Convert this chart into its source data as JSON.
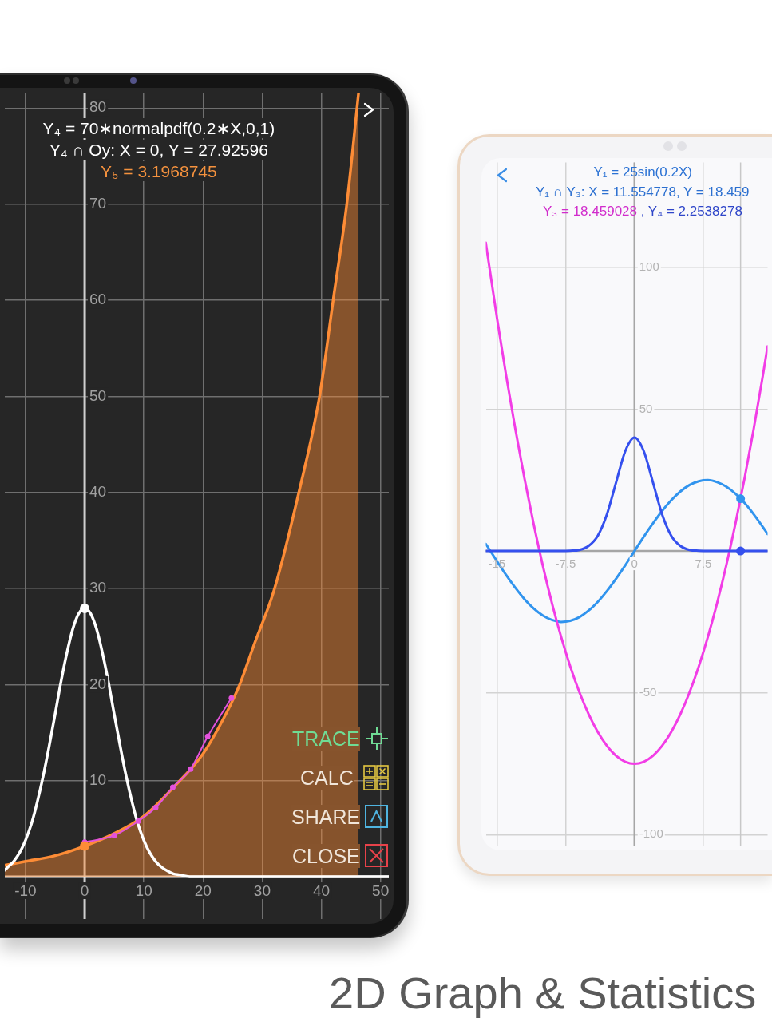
{
  "chart_data": [
    {
      "type": "line",
      "xlim": [
        -13.5,
        51.4
      ],
      "ylim": [
        -4.4,
        81.6
      ],
      "xticks": [
        -10,
        0,
        10,
        20,
        30,
        40,
        50
      ],
      "yticks": [
        10,
        20,
        30,
        40,
        50,
        60,
        70,
        80
      ],
      "grid": true,
      "annotations": [
        "Y₄ = 70∗normalpdf(0.2∗X,0,1)",
        "Y₄ ∩ Oy: X = 0, Y = 27.92596",
        "Y₅ = 3.1968745",
        "TRACE",
        "CALC",
        "SHARE",
        "CLOSE",
        "2D Graph & Statistics"
      ],
      "series": [
        {
          "type": "area",
          "color": "#fd8c36",
          "x": [
            -13.5,
            -10,
            -5,
            0,
            5,
            10,
            15,
            20,
            24,
            26.2,
            28.6,
            32.1,
            36.2,
            39.7,
            42,
            44.3,
            46.3
          ],
          "values": [
            1.2,
            1.6,
            2.2,
            3.2,
            4.5,
            6.3,
            9.3,
            12.8,
            17.1,
            20,
            24.1,
            30,
            40,
            50,
            60,
            70,
            81.6
          ]
        },
        {
          "type": "line",
          "color": "#ffffff",
          "x": [
            -13.5,
            -13,
            -12,
            -11,
            -10,
            -9,
            -8,
            -7,
            -6,
            -5,
            -4,
            -3,
            -2,
            -1,
            0,
            1,
            2,
            3,
            4,
            5,
            6,
            7,
            8,
            9,
            10,
            11,
            12,
            13,
            14,
            15,
            16,
            18,
            20,
            30,
            40,
            51.4
          ],
          "values": [
            0.7,
            1.0,
            1.6,
            2.5,
            3.8,
            5.5,
            7.8,
            10.5,
            13.6,
            16.9,
            20.3,
            23.3,
            25.8,
            27.4,
            27.9,
            27.4,
            25.8,
            23.3,
            20.3,
            16.9,
            13.6,
            10.5,
            7.8,
            5.5,
            3.8,
            2.5,
            1.6,
            1.0,
            0.6,
            0.3,
            0.2,
            0,
            0,
            0,
            0,
            0
          ]
        },
        {
          "type": "line",
          "color": "#e352dc",
          "marker": "circle",
          "x": [
            0,
            5.0,
            9.1,
            12.0,
            14.9,
            17.9,
            20.8,
            24.8
          ],
          "values": [
            3.6,
            4.3,
            5.8,
            7.2,
            9.3,
            11.2,
            14.6,
            18.6
          ]
        },
        {
          "type": "scatter",
          "color": "#ffffff",
          "marker": "circle",
          "x": [
            0
          ],
          "values": [
            27.92596
          ]
        },
        {
          "type": "scatter",
          "color": "#fd8c36",
          "marker": "circle",
          "x": [
            0
          ],
          "values": [
            3.1968745
          ]
        }
      ]
    },
    {
      "type": "line",
      "xlim": [
        -16.2,
        14.5
      ],
      "ylim": [
        -104,
        137
      ],
      "xticks": [
        -15,
        -7.5,
        0,
        7.5
      ],
      "yticks": [
        -100,
        -50,
        50,
        100
      ],
      "grid": true,
      "ref_lines": [
        {
          "axis": "x",
          "value": 11.554778,
          "color": "#c8c8c8"
        }
      ],
      "annotations": [
        "Y₁ = 25sin(0.2X)",
        "Y₁ ∩ Y₃: X = 11.554778, Y = 18.459",
        "Y₃ = 18.459028",
        ", Y₄ = 2.2538278"
      ],
      "series": [
        {
          "type": "line",
          "color": "#3194ee",
          "x": [
            -16.2,
            -16,
            -15,
            -14,
            -13,
            -12,
            -11,
            -10,
            -9,
            -8,
            -7,
            -6,
            -5,
            -4,
            -3,
            -2,
            -1,
            0,
            1,
            2,
            3,
            4,
            5,
            6,
            7,
            8,
            9,
            10,
            11,
            12,
            13,
            14,
            14.5
          ],
          "values": [
            2.5,
            1.5,
            -3.5,
            -8.4,
            -12.9,
            -16.9,
            -20.2,
            -22.7,
            -24.3,
            -25.0,
            -24.6,
            -23.3,
            -21.0,
            -17.9,
            -14.1,
            -9.7,
            -5.0,
            0,
            5.0,
            9.7,
            14.1,
            17.9,
            21.0,
            23.3,
            24.6,
            25.0,
            24.3,
            22.7,
            20.2,
            16.9,
            12.9,
            8.4,
            6.0
          ]
        },
        {
          "type": "line",
          "color": "#f23de6",
          "x": [
            -16.2,
            -16,
            -15,
            -14,
            -13,
            -12,
            -11,
            -10,
            -9,
            -8,
            -7,
            -6,
            -5,
            -4,
            -3,
            -2,
            -1,
            0,
            1,
            2,
            3,
            4,
            5,
            6,
            7,
            8,
            9,
            10,
            11,
            12,
            13,
            14,
            14.5
          ],
          "values": [
            108.7,
            104.2,
            82.5,
            62.2,
            43.3,
            25.8,
            9.7,
            -5.0,
            -18.3,
            -30.2,
            -40.7,
            -49.8,
            -57.5,
            -63.8,
            -68.7,
            -72.2,
            -74.3,
            -75,
            -74.3,
            -72.2,
            -68.7,
            -63.8,
            -57.5,
            -49.8,
            -40.7,
            -30.2,
            -18.3,
            -5.0,
            9.7,
            25.8,
            43.3,
            62.2,
            72.2
          ]
        },
        {
          "type": "line",
          "color": "#3550ee",
          "x": [
            -16.2,
            -8,
            -7,
            -6,
            -5,
            -4,
            -3,
            -2,
            -1,
            0,
            1,
            2,
            3,
            4,
            5,
            6,
            7,
            8,
            14.5
          ],
          "values": [
            0,
            0,
            0.1,
            0.4,
            1.8,
            5.4,
            13.0,
            24.3,
            35.3,
            40,
            35.3,
            24.3,
            13.0,
            5.4,
            1.8,
            0.4,
            0.1,
            0,
            0
          ]
        },
        {
          "type": "scatter",
          "color": "#3194ee",
          "marker": "circle",
          "x": [
            11.554778
          ],
          "values": [
            18.459028
          ]
        },
        {
          "type": "scatter",
          "color": "#3550ee",
          "marker": "circle",
          "x": [
            11.554778
          ],
          "values": [
            0
          ]
        }
      ]
    }
  ]
}
